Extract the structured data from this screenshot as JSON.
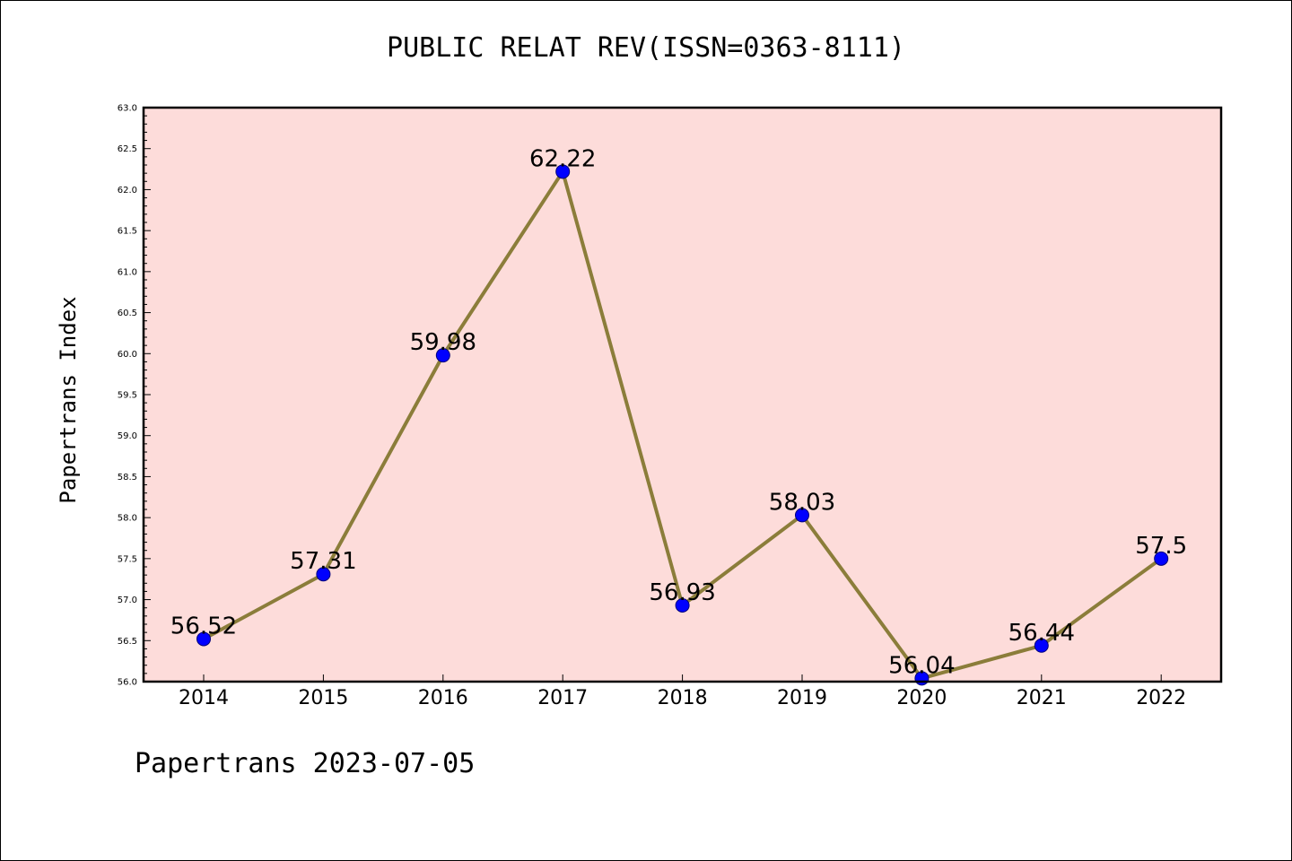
{
  "title": "PUBLIC RELAT REV(ISSN=0363-8111)",
  "footer": "Papertrans 2023-07-05",
  "chart_data": {
    "type": "line",
    "title": "PUBLIC RELAT REV(ISSN=0363-8111)",
    "xlabel": "",
    "ylabel": "Papertrans Index",
    "categories": [
      "2014",
      "2015",
      "2016",
      "2017",
      "2018",
      "2019",
      "2020",
      "2021",
      "2022"
    ],
    "series": [
      {
        "values": [
          56.52,
          57.31,
          59.98,
          62.22,
          56.93,
          58.03,
          56.04,
          56.44,
          57.5
        ],
        "labels": [
          "56.52",
          "57.31",
          "59.98",
          "62.22",
          "56.93",
          "58.03",
          "56.04",
          "56.44",
          "57.5"
        ],
        "line_color": "#8b7d3a",
        "marker_color": "#0000ff"
      }
    ],
    "ylim": [
      56.0,
      63.0
    ],
    "yticks": [
      "56.0",
      "56.5",
      "57.0",
      "57.5",
      "58.0",
      "58.5",
      "59.0",
      "59.5",
      "60.0",
      "60.5",
      "61.0",
      "61.5",
      "62.0",
      "62.5",
      "63.0"
    ],
    "plot_background": "#fddcda",
    "grid": false,
    "legend": "none"
  }
}
